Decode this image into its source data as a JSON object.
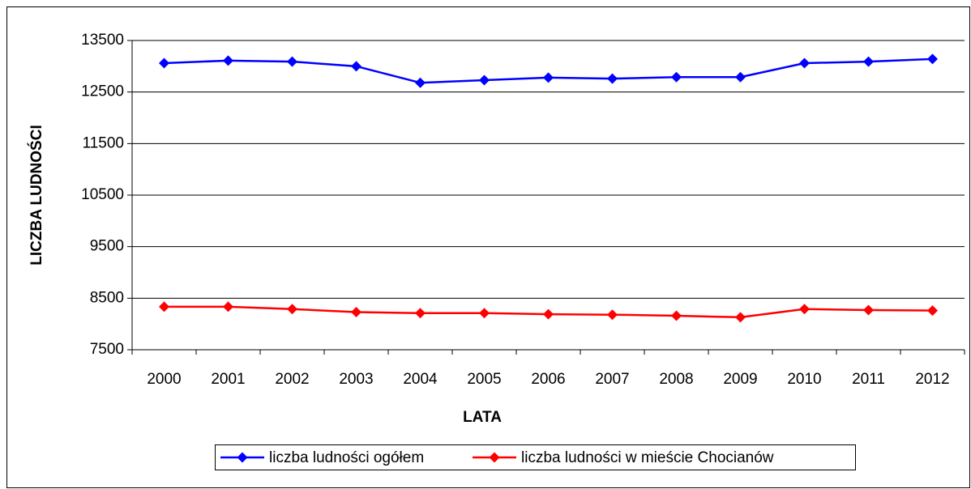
{
  "chart_data": {
    "type": "line",
    "x_label": "LATA",
    "y_label": "LICZBA LUDNOŚCI",
    "categories": [
      "2000",
      "2001",
      "2002",
      "2003",
      "2004",
      "2005",
      "2006",
      "2007",
      "2008",
      "2009",
      "2010",
      "2011",
      "2012"
    ],
    "series": [
      {
        "name": "liczba ludności ogółem",
        "color": "#0000ff",
        "values": [
          13060,
          13110,
          13090,
          13000,
          12680,
          12730,
          12780,
          12760,
          12790,
          12790,
          13060,
          13090,
          13140
        ]
      },
      {
        "name": "liczba ludności w mieście Chocianów",
        "color": "#ff0000",
        "values": [
          8335,
          8335,
          8290,
          8230,
          8210,
          8210,
          8190,
          8180,
          8160,
          8130,
          8290,
          8270,
          8260
        ]
      }
    ],
    "ylim": [
      7500,
      13500
    ],
    "yticks": [
      7500,
      8500,
      9500,
      10500,
      11500,
      12500,
      13500
    ],
    "grid": true
  }
}
